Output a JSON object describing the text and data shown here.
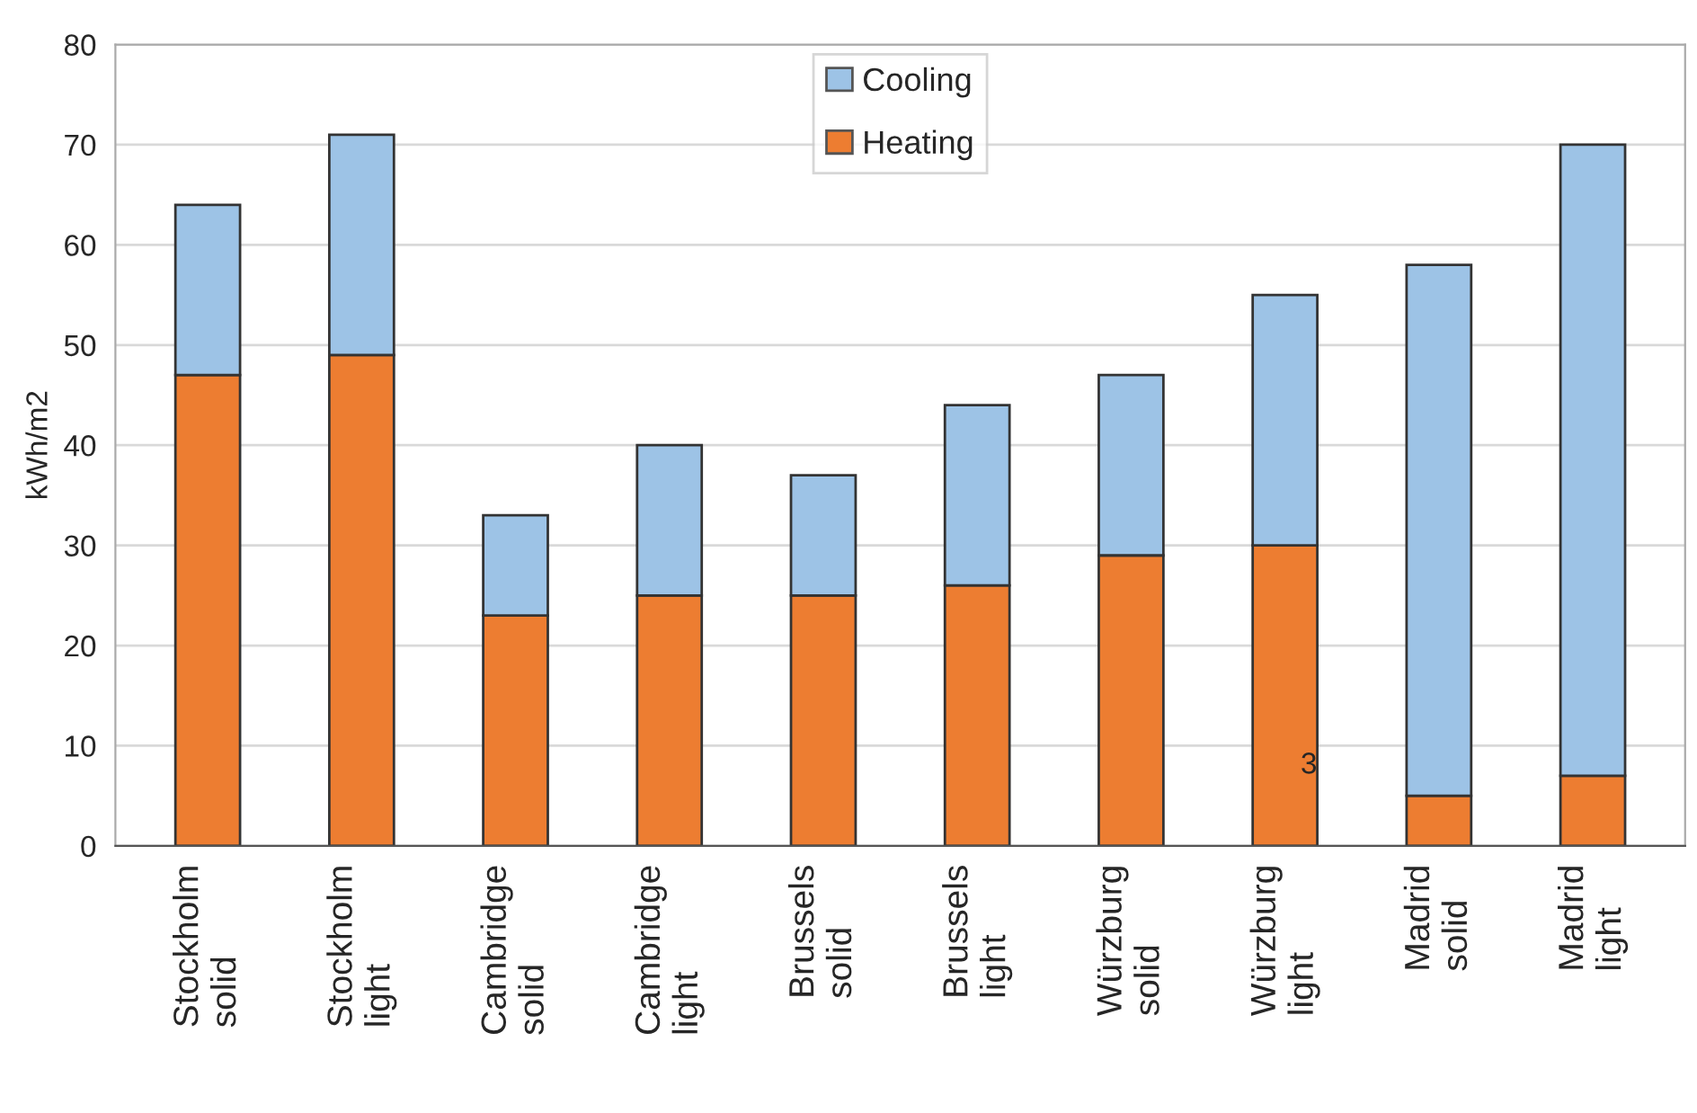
{
  "chart_data": {
    "type": "bar",
    "stacked": true,
    "ylabel": "kWh/m2",
    "categories": [
      "Stockholm\nsolid",
      "Stockholm\nlight",
      "Cambridge\nsolid",
      "Cambridge\nlight",
      "Brussels\nsolid",
      "Brussels\nlight",
      "Würzburg\nsolid",
      "Würzburg\nlight",
      "Madrid\nsolid",
      "Madrid\nlight"
    ],
    "series": [
      {
        "name": "Heating",
        "color": "#ed7d31",
        "values": [
          47,
          49,
          23,
          25,
          25,
          26,
          29,
          30,
          5,
          7
        ]
      },
      {
        "name": "Cooling",
        "color": "#9dc3e6",
        "values": [
          17,
          22,
          10,
          15,
          12,
          18,
          18,
          25,
          53,
          63
        ]
      }
    ],
    "ylim": [
      0,
      80
    ],
    "yticks": [
      0,
      10,
      20,
      30,
      40,
      50,
      60,
      70,
      80
    ],
    "grid": "y",
    "legend": "top",
    "annotations": [
      "3"
    ]
  }
}
